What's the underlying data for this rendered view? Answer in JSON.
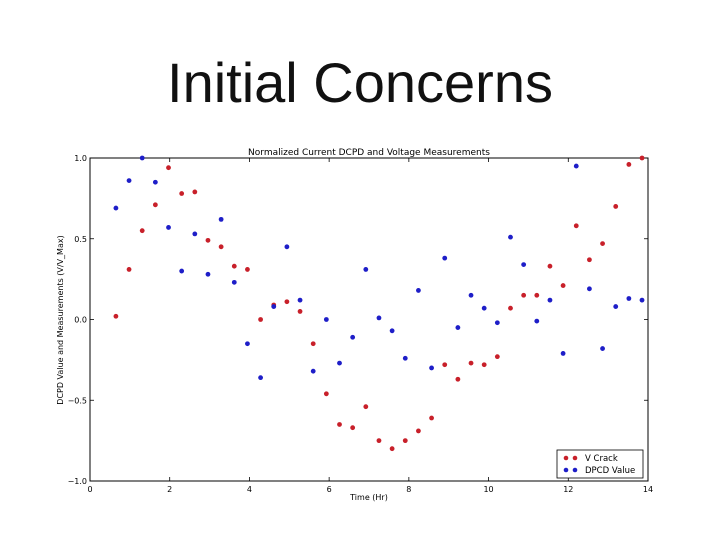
{
  "slide": {
    "title": "Initial Concerns"
  },
  "chart_data": {
    "type": "scatter",
    "title": "Normalized Current DCPD and Voltage Measurements",
    "xlabel": "Time (Hr)",
    "ylabel": "DCPD Value and Measurements (V/V_Max)",
    "xlim": [
      0,
      14
    ],
    "ylim": [
      -1.0,
      1.0
    ],
    "xticks": [
      "0",
      "2",
      "4",
      "6",
      "8",
      "10",
      "12",
      "14"
    ],
    "yticks": [
      "−1.0",
      "−0.5",
      "0.0",
      "0.5",
      "1.0"
    ],
    "grid": false,
    "legend": "bottom-right",
    "series": [
      {
        "name": "V Crack",
        "color": "#c8202a",
        "points": [
          [
            0.65,
            0.02
          ],
          [
            0.98,
            0.31
          ],
          [
            1.31,
            0.55
          ],
          [
            1.64,
            0.71
          ],
          [
            1.97,
            0.94
          ],
          [
            2.3,
            0.78
          ],
          [
            2.63,
            0.79
          ],
          [
            2.96,
            0.49
          ],
          [
            3.29,
            0.45
          ],
          [
            3.62,
            0.33
          ],
          [
            3.95,
            0.31
          ],
          [
            4.28,
            0.0
          ],
          [
            4.61,
            0.09
          ],
          [
            4.94,
            0.11
          ],
          [
            5.27,
            0.05
          ],
          [
            5.6,
            -0.15
          ],
          [
            5.93,
            -0.46
          ],
          [
            6.26,
            -0.65
          ],
          [
            6.59,
            -0.67
          ],
          [
            6.92,
            -0.54
          ],
          [
            7.25,
            -0.75
          ],
          [
            7.58,
            -0.8
          ],
          [
            7.91,
            -0.75
          ],
          [
            8.24,
            -0.69
          ],
          [
            8.57,
            -0.61
          ],
          [
            8.9,
            -0.28
          ],
          [
            9.23,
            -0.37
          ],
          [
            9.56,
            -0.27
          ],
          [
            9.89,
            -0.28
          ],
          [
            10.22,
            -0.23
          ],
          [
            10.55,
            0.07
          ],
          [
            10.88,
            0.15
          ],
          [
            11.21,
            0.15
          ],
          [
            11.54,
            0.33
          ],
          [
            11.87,
            0.21
          ],
          [
            12.2,
            0.58
          ],
          [
            12.53,
            0.37
          ],
          [
            12.86,
            0.47
          ],
          [
            13.19,
            0.7
          ],
          [
            13.52,
            0.96
          ],
          [
            13.85,
            1.0
          ]
        ]
      },
      {
        "name": "DPCD Value",
        "color": "#1e1ec8",
        "points": [
          [
            0.65,
            0.69
          ],
          [
            0.98,
            0.86
          ],
          [
            1.31,
            1.0
          ],
          [
            1.64,
            0.85
          ],
          [
            1.97,
            0.57
          ],
          [
            2.3,
            0.3
          ],
          [
            2.63,
            0.53
          ],
          [
            2.96,
            0.28
          ],
          [
            3.29,
            0.62
          ],
          [
            3.62,
            0.23
          ],
          [
            3.95,
            -0.15
          ],
          [
            4.28,
            -0.36
          ],
          [
            4.61,
            0.08
          ],
          [
            4.94,
            0.45
          ],
          [
            5.27,
            0.12
          ],
          [
            5.6,
            -0.32
          ],
          [
            5.93,
            0.0
          ],
          [
            6.26,
            -0.27
          ],
          [
            6.59,
            -0.11
          ],
          [
            6.92,
            0.31
          ],
          [
            7.25,
            0.01
          ],
          [
            7.58,
            -0.07
          ],
          [
            7.91,
            -0.24
          ],
          [
            8.24,
            0.18
          ],
          [
            8.57,
            -0.3
          ],
          [
            8.9,
            0.38
          ],
          [
            9.23,
            -0.05
          ],
          [
            9.56,
            0.15
          ],
          [
            9.89,
            0.07
          ],
          [
            10.22,
            -0.02
          ],
          [
            10.55,
            0.51
          ],
          [
            10.88,
            0.34
          ],
          [
            11.21,
            -0.01
          ],
          [
            11.54,
            0.12
          ],
          [
            11.87,
            -0.21
          ],
          [
            12.2,
            0.95
          ],
          [
            12.53,
            0.19
          ],
          [
            12.86,
            -0.18
          ],
          [
            13.19,
            0.08
          ],
          [
            13.52,
            0.13
          ],
          [
            13.85,
            0.12
          ]
        ]
      }
    ]
  }
}
